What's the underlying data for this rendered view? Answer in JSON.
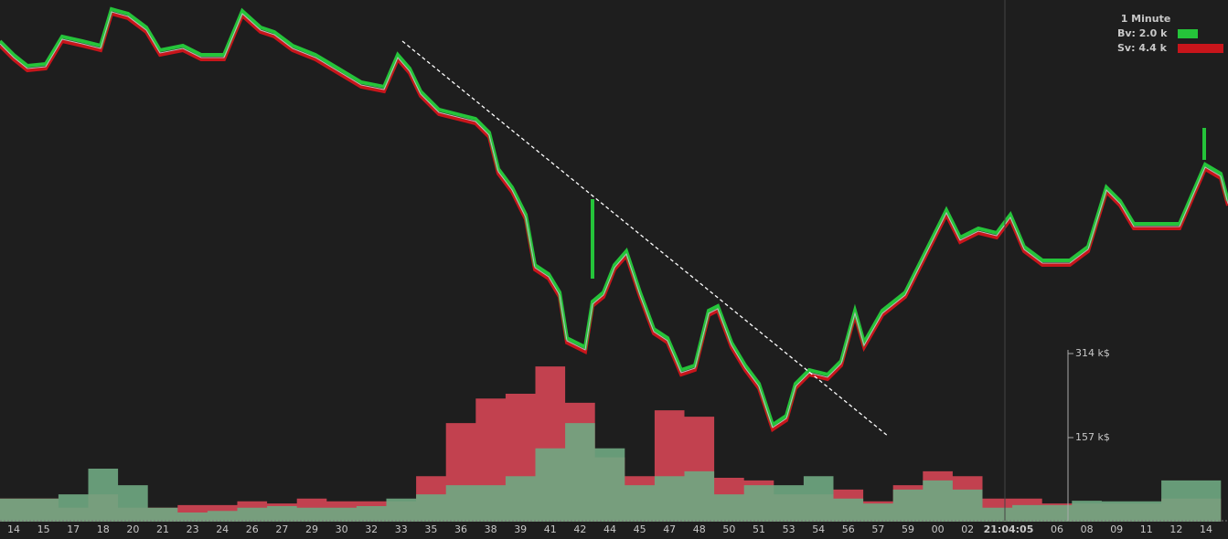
{
  "chart_data": {
    "type": "area",
    "legend_title": "1 Minute",
    "cursor_label": "21:04:05",
    "categories": [
      "14",
      "15",
      "17",
      "18",
      "20",
      "21",
      "23",
      "24",
      "26",
      "27",
      "29",
      "30",
      "32",
      "33",
      "35",
      "36",
      "38",
      "39",
      "41",
      "42",
      "44",
      "45",
      "47",
      "48",
      "50",
      "51",
      "53",
      "54",
      "56",
      "57",
      "59",
      "00",
      "02",
      null,
      null,
      "06",
      "08",
      "09",
      "11",
      "12",
      "14"
    ],
    "series": [
      {
        "name": "Bv: 2.0 k",
        "color": "#25c43a",
        "fill": "#6fa882",
        "values": [
          43,
          43,
          51,
          99,
          68,
          26,
          17,
          20,
          26,
          29,
          26,
          26,
          29,
          43,
          51,
          68,
          68,
          85,
          137,
          184,
          137,
          68,
          85,
          94,
          51,
          68,
          68,
          85,
          43,
          34,
          60,
          77,
          60,
          26,
          31,
          31,
          39,
          38,
          38,
          77,
          77
        ]
      },
      {
        "name": "Sv: 4.4 k",
        "color": "#c8151b",
        "fill": "#c2414f",
        "values": [
          43,
          43,
          26,
          51,
          26,
          26,
          31,
          31,
          38,
          34,
          43,
          38,
          38,
          38,
          85,
          184,
          230,
          239,
          290,
          222,
          120,
          85,
          208,
          196,
          82,
          77,
          51,
          51,
          60,
          38,
          68,
          94,
          85,
          43,
          43,
          34,
          34,
          34,
          34,
          43,
          43
        ]
      }
    ],
    "ylim": [
      0,
      314
    ],
    "yticks": [
      {
        "value": 157,
        "label": "157 k$"
      },
      {
        "value": 314,
        "label": "314 k$"
      }
    ]
  }
}
